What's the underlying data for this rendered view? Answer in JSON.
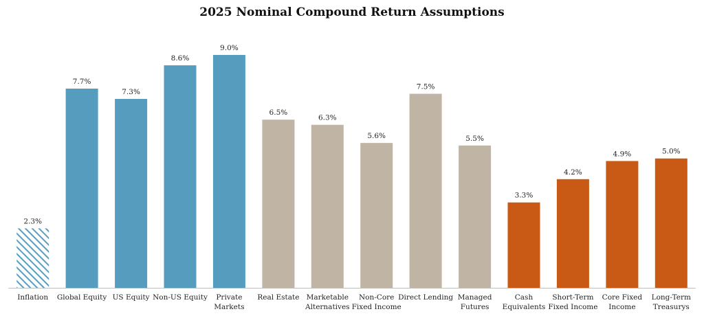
{
  "chart_data": {
    "type": "bar",
    "title": "2025 Nominal Compound Return Assumptions",
    "categories": [
      [
        "Inflation"
      ],
      [
        "Global Equity"
      ],
      [
        "US Equity"
      ],
      [
        "Non-US Equity"
      ],
      [
        "Private",
        "Markets"
      ],
      [
        "Real Estate"
      ],
      [
        "Marketable",
        "Alternatives"
      ],
      [
        "Non-Core",
        "Fixed Income"
      ],
      [
        "Direct Lending"
      ],
      [
        "Managed",
        "Futures"
      ],
      [
        "Cash",
        "Equivalents"
      ],
      [
        "Short-Term",
        "Fixed Income"
      ],
      [
        "Core Fixed",
        "Income"
      ],
      [
        "Long-Term",
        "Treasurys"
      ]
    ],
    "values": [
      2.3,
      7.7,
      7.3,
      8.6,
      9.0,
      6.5,
      6.3,
      5.6,
      7.5,
      5.5,
      3.3,
      4.2,
      4.9,
      5.0
    ],
    "value_labels": [
      "2.3%",
      "7.7%",
      "7.3%",
      "8.6%",
      "9.0%",
      "6.5%",
      "6.3%",
      "5.6%",
      "7.5%",
      "5.5%",
      "3.3%",
      "4.2%",
      "4.9%",
      "5.0%"
    ],
    "groups": [
      "inflation",
      "equity",
      "equity",
      "equity",
      "equity",
      "real",
      "real",
      "real",
      "real",
      "real",
      "fixed",
      "fixed",
      "fixed",
      "fixed"
    ],
    "colors": {
      "inflation": "#5a9cbd",
      "equity": "#559cbe",
      "real": "#c0b5a5",
      "fixed": "#c95a16"
    },
    "inflation_pattern": "diagonal-hatch",
    "ylim": [
      0,
      9.6
    ],
    "xlabel": "",
    "ylabel": "",
    "grid": false,
    "legend": "none"
  }
}
